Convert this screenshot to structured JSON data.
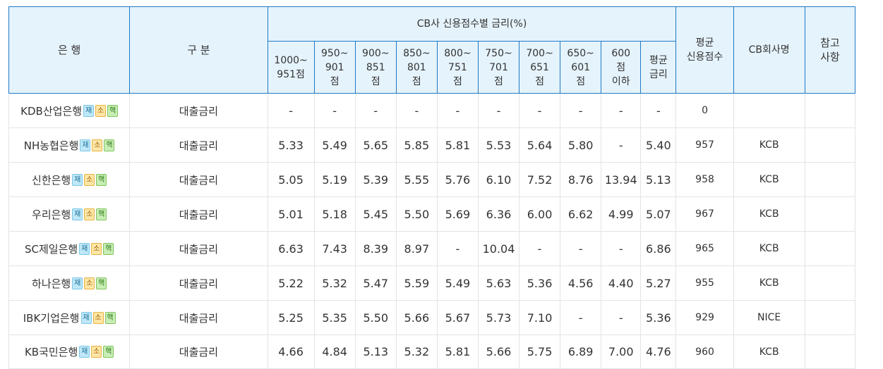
{
  "header": {
    "bank": "은 행",
    "kind": "구 분",
    "cb_group": "CB사 신용점수별 금리(%)",
    "score_cols": [
      [
        "1000~",
        "951점"
      ],
      [
        "950~",
        "901",
        "점"
      ],
      [
        "900~",
        "851",
        "점"
      ],
      [
        "850~",
        "801",
        "점"
      ],
      [
        "800~",
        "751",
        "점"
      ],
      [
        "750~",
        "701",
        "점"
      ],
      [
        "700~",
        "651",
        "점"
      ],
      [
        "650~",
        "601",
        "점"
      ],
      [
        "600",
        "점",
        "이하"
      ],
      [
        "평균",
        "금리"
      ]
    ],
    "avg_score": [
      "평균",
      "신용점수"
    ],
    "cb_company": "CB회사명",
    "note": [
      "참고",
      "사항"
    ]
  },
  "badges": [
    {
      "text": "재",
      "color": "#bfe8f8"
    },
    {
      "text": "소",
      "color": "#fde6a6"
    },
    {
      "text": "핵",
      "color": "#c8eeb6"
    }
  ],
  "rows": [
    {
      "bank": "KDB산업은행",
      "kind": "대출금리",
      "rates": [
        "-",
        "-",
        "-",
        "-",
        "-",
        "-",
        "-",
        "-",
        "-",
        "-"
      ],
      "avg_score": "0",
      "cb": "",
      "note": ""
    },
    {
      "bank": "NH농협은행",
      "kind": "대출금리",
      "rates": [
        "5.33",
        "5.49",
        "5.65",
        "5.85",
        "5.81",
        "5.53",
        "5.64",
        "5.80",
        "-",
        "5.40"
      ],
      "avg_score": "957",
      "cb": "KCB",
      "note": ""
    },
    {
      "bank": "신한은행",
      "kind": "대출금리",
      "rates": [
        "5.05",
        "5.19",
        "5.39",
        "5.55",
        "5.76",
        "6.10",
        "7.52",
        "8.76",
        "13.94",
        "5.13"
      ],
      "avg_score": "958",
      "cb": "KCB",
      "note": ""
    },
    {
      "bank": "우리은행",
      "kind": "대출금리",
      "rates": [
        "5.01",
        "5.18",
        "5.45",
        "5.50",
        "5.69",
        "6.36",
        "6.00",
        "6.62",
        "4.99",
        "5.07"
      ],
      "avg_score": "967",
      "cb": "KCB",
      "note": ""
    },
    {
      "bank": "SC제일은행",
      "kind": "대출금리",
      "rates": [
        "6.63",
        "7.43",
        "8.39",
        "8.97",
        "-",
        "10.04",
        "-",
        "-",
        "-",
        "6.86"
      ],
      "avg_score": "965",
      "cb": "KCB",
      "note": ""
    },
    {
      "bank": "하나은행",
      "kind": "대출금리",
      "rates": [
        "5.22",
        "5.32",
        "5.47",
        "5.59",
        "5.49",
        "5.63",
        "5.36",
        "4.56",
        "4.40",
        "5.27"
      ],
      "avg_score": "955",
      "cb": "KCB",
      "note": ""
    },
    {
      "bank": "IBK기업은행",
      "kind": "대출금리",
      "rates": [
        "5.25",
        "5.35",
        "5.50",
        "5.66",
        "5.67",
        "5.73",
        "7.10",
        "-",
        "-",
        "5.36"
      ],
      "avg_score": "929",
      "cb": "NICE",
      "note": ""
    },
    {
      "bank": "KB국민은행",
      "kind": "대출금리",
      "rates": [
        "4.66",
        "4.84",
        "5.13",
        "5.32",
        "5.81",
        "5.66",
        "5.75",
        "6.89",
        "7.00",
        "4.76"
      ],
      "avg_score": "960",
      "cb": "KCB",
      "note": ""
    }
  ]
}
